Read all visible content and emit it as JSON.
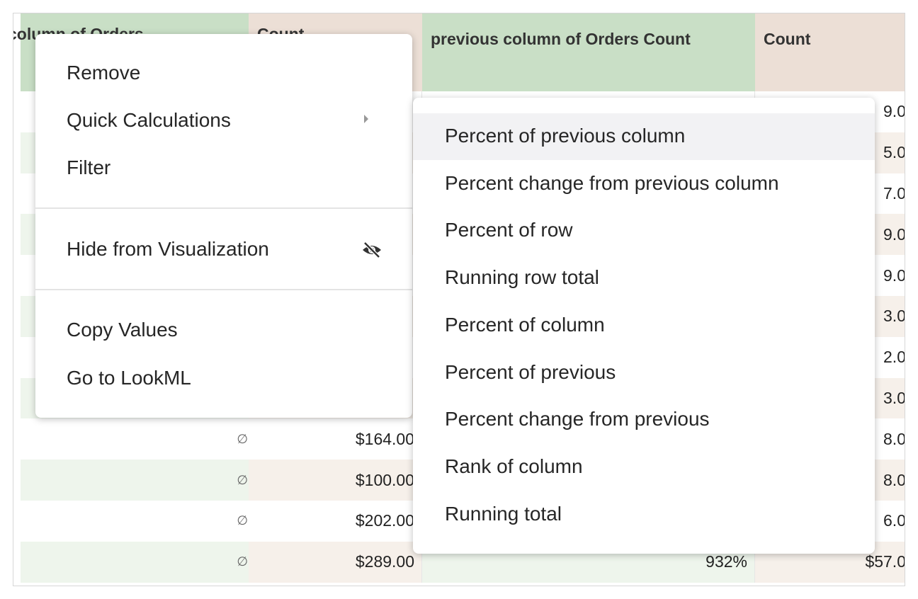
{
  "table": {
    "headers": [
      {
        "key": "col1",
        "text": "column of Orders"
      },
      {
        "key": "col2",
        "text": "Count"
      },
      {
        "key": "col3",
        "text": "previous column of Orders Count"
      },
      {
        "key": "col4",
        "text": "Count"
      }
    ],
    "rows": [
      {
        "col4": "9.0"
      },
      {
        "col4": "5.0"
      },
      {
        "col4": "7.0"
      },
      {
        "col4": "9.0"
      },
      {
        "col4": "9.0"
      },
      {
        "col4": "3.0"
      },
      {
        "col4": "2.0"
      },
      {
        "col4": "3.0"
      },
      {
        "col1": "∅",
        "col2": "$164.00",
        "col4": "8.0"
      },
      {
        "col1": "∅",
        "col2": "$100.00",
        "col4": "8.0"
      },
      {
        "col1": "∅",
        "col2": "$202.00",
        "col4": "6.0"
      },
      {
        "col1": "∅",
        "col2": "$289.00",
        "col3": "932%",
        "col4": "$57.0"
      }
    ]
  },
  "menu": {
    "items": [
      "Remove",
      "Quick Calculations",
      "Filter",
      "Hide from Visualization",
      "Copy Values",
      "Go to LookML"
    ]
  },
  "submenu": {
    "items": [
      "Percent of previous column",
      "Percent change from previous column",
      "Percent of row",
      "Running row total",
      "Percent of column",
      "Percent of previous",
      "Percent change from previous",
      "Rank of column",
      "Running total"
    ]
  }
}
